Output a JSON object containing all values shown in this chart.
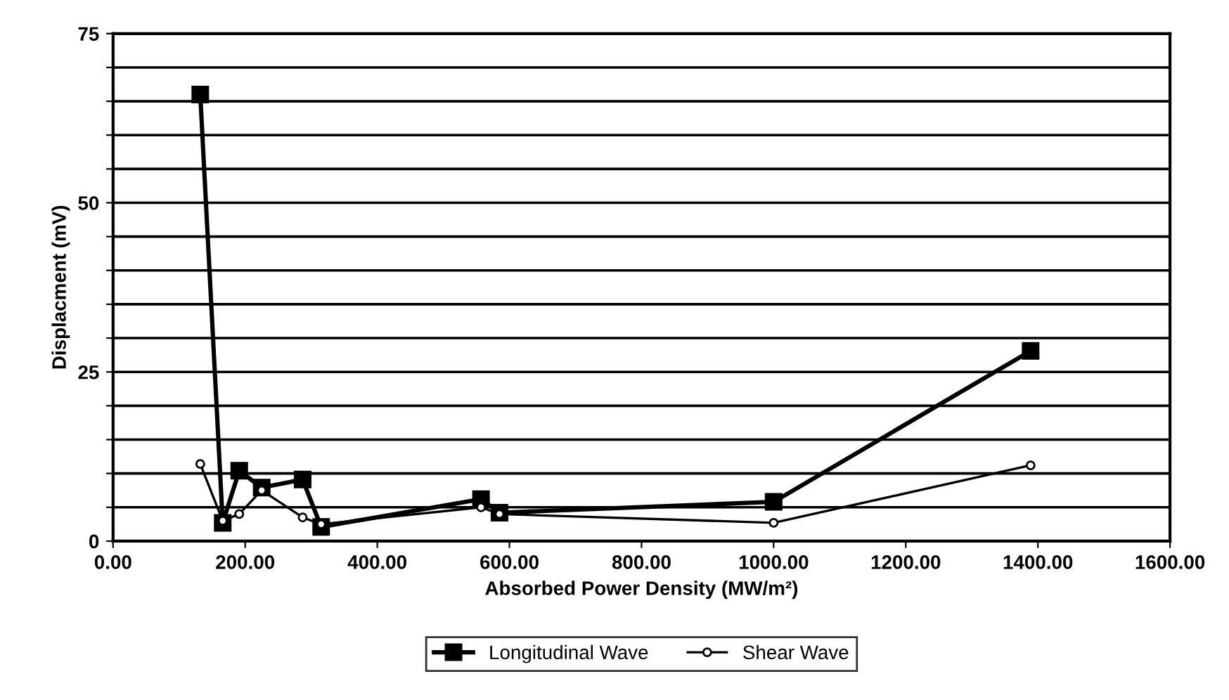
{
  "chart_data": {
    "type": "line",
    "xlabel": "Absorbed Power Density (MW/m²)",
    "ylabel": "Displacment (mV)",
    "xlim": [
      0,
      1600
    ],
    "ylim": [
      0,
      75
    ],
    "xticks": [
      {
        "value": 0,
        "label": "0.00"
      },
      {
        "value": 200,
        "label": "200.00"
      },
      {
        "value": 400,
        "label": "400.00"
      },
      {
        "value": 600,
        "label": "600.00"
      },
      {
        "value": 800,
        "label": "800.00"
      },
      {
        "value": 1000,
        "label": "1000.00"
      },
      {
        "value": 1200,
        "label": "1200.00"
      },
      {
        "value": 1400,
        "label": "1400.00"
      },
      {
        "value": 1600,
        "label": "1600.00"
      }
    ],
    "yticks": [
      0,
      {
        "value": 5,
        "label": null
      },
      {
        "value": 10,
        "label": null
      },
      {
        "value": 15,
        "label": null
      },
      {
        "value": 20,
        "label": null
      },
      25,
      {
        "value": 30,
        "label": null
      },
      {
        "value": 35,
        "label": null
      },
      {
        "value": 40,
        "label": null
      },
      {
        "value": 45,
        "label": null
      },
      50,
      {
        "value": 55,
        "label": null
      },
      {
        "value": 60,
        "label": null
      },
      {
        "value": 65,
        "label": null
      },
      {
        "value": 70,
        "label": null
      },
      75
    ],
    "grid": "y",
    "legend": "bottom",
    "series": [
      {
        "name": "Longitudinal Wave",
        "color": "#000000",
        "marker": "square",
        "x": [
          132,
          166,
          191,
          225,
          287,
          315,
          557,
          585,
          1000,
          1389
        ],
        "values": [
          66,
          2.7,
          10.4,
          7.9,
          9.1,
          2.1,
          6.2,
          4.2,
          5.8,
          28.1
        ]
      },
      {
        "name": "Shear Wave",
        "color": "#000000",
        "marker": "circle",
        "x": [
          132,
          166,
          191,
          225,
          287,
          315,
          557,
          585,
          1000,
          1389
        ],
        "values": [
          11.4,
          3,
          4,
          7.5,
          3.5,
          2.5,
          5,
          4,
          2.7,
          11.2
        ]
      }
    ]
  }
}
